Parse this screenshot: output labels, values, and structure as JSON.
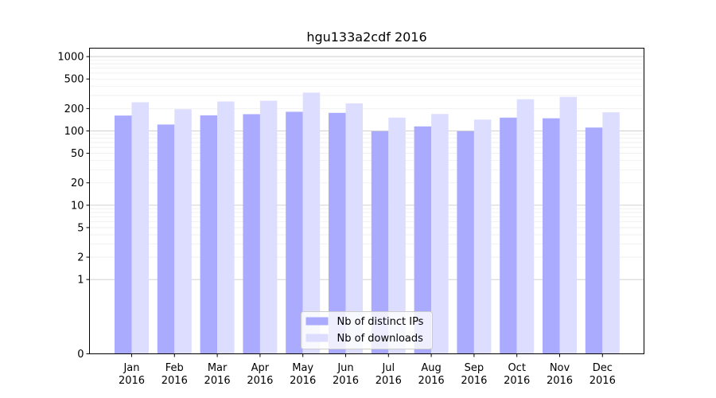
{
  "chart_data": {
    "type": "bar",
    "title": "hgu133a2cdf 2016",
    "xlabel": "",
    "ylabel": "",
    "yscale": "symlog",
    "ylim": [
      0,
      1300
    ],
    "y_ticks": [
      0,
      1,
      2,
      5,
      10,
      20,
      50,
      100,
      200,
      500,
      1000
    ],
    "y_tick_labels": [
      "0",
      "1",
      "2",
      "5",
      "10",
      "20",
      "50",
      "100",
      "200",
      "500",
      "1000"
    ],
    "grid": true,
    "legend_position": "bottom-center",
    "categories": [
      [
        "Jan",
        "2016"
      ],
      [
        "Feb",
        "2016"
      ],
      [
        "Mar",
        "2016"
      ],
      [
        "Apr",
        "2016"
      ],
      [
        "May",
        "2016"
      ],
      [
        "Jun",
        "2016"
      ],
      [
        "Jul",
        "2016"
      ],
      [
        "Aug",
        "2016"
      ],
      [
        "Sep",
        "2016"
      ],
      [
        "Oct",
        "2016"
      ],
      [
        "Nov",
        "2016"
      ],
      [
        "Dec",
        "2016"
      ]
    ],
    "series": [
      {
        "name": "Nb of distinct IPs",
        "color": "#aaaaff",
        "values": [
          161,
          122,
          162,
          168,
          181,
          175,
          99,
          115,
          99,
          151,
          148,
          111
        ]
      },
      {
        "name": "Nb of downloads",
        "color": "#ddddff",
        "values": [
          243,
          196,
          249,
          255,
          328,
          235,
          151,
          169,
          142,
          267,
          287,
          178
        ]
      }
    ]
  }
}
